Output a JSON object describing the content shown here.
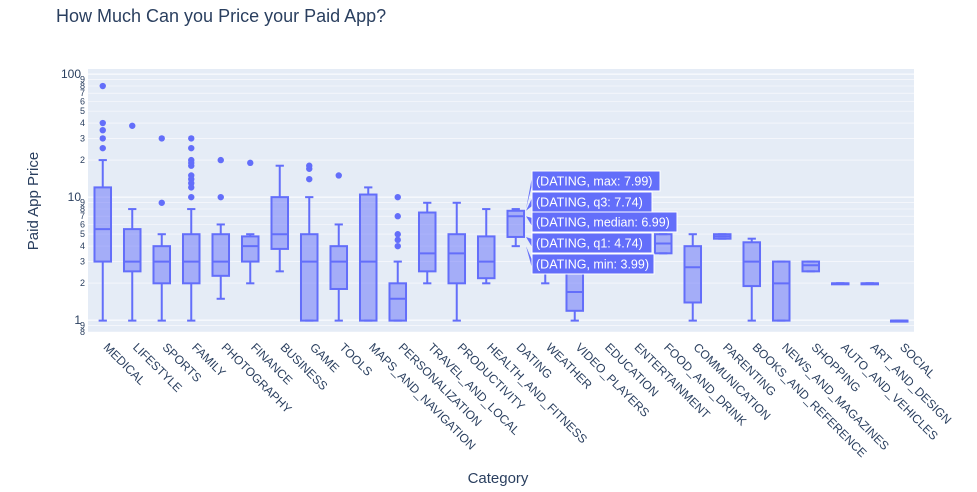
{
  "chart_data": {
    "type": "box",
    "title": "How Much Can you Price your Paid App?",
    "xlabel": "Category",
    "ylabel": "Paid App Price",
    "yscale": "log",
    "ylim": [
      0.8,
      110
    ],
    "y_major_ticks": [
      {
        "v": 1,
        "label": "1"
      },
      {
        "v": 10,
        "label": "10"
      },
      {
        "v": 100,
        "label": "100"
      }
    ],
    "y_minor_ticks": [
      {
        "v": 0.8,
        "label": "8"
      },
      {
        "v": 0.9,
        "label": "9"
      },
      {
        "v": 2,
        "label": "2"
      },
      {
        "v": 3,
        "label": "3"
      },
      {
        "v": 4,
        "label": "4"
      },
      {
        "v": 5,
        "label": "5"
      },
      {
        "v": 6,
        "label": "6"
      },
      {
        "v": 7,
        "label": "7"
      },
      {
        "v": 8,
        "label": "8"
      },
      {
        "v": 9,
        "label": "9"
      },
      {
        "v": 20,
        "label": "2"
      },
      {
        "v": 30,
        "label": "3"
      },
      {
        "v": 40,
        "label": "4"
      },
      {
        "v": 50,
        "label": "5"
      },
      {
        "v": 60,
        "label": "6"
      },
      {
        "v": 70,
        "label": "7"
      },
      {
        "v": 80,
        "label": "8"
      },
      {
        "v": 90,
        "label": "9"
      }
    ],
    "colors": {
      "box_line": "#636efa",
      "box_fill": "rgba(99,110,250,0.5)",
      "plot_bg": "#e5ecf6",
      "grid": "#ffffff",
      "text": "#2a3f5f",
      "hover_bg": "#636efa"
    },
    "grid": true,
    "categories": [
      "MEDICAL",
      "LIFESTYLE",
      "SPORTS",
      "FAMILY",
      "PHOTOGRAPHY",
      "FINANCE",
      "BUSINESS",
      "GAME",
      "TOOLS",
      "MAPS_AND_NAVIGATION",
      "PERSONALIZATION",
      "TRAVEL_AND_LOCAL",
      "PRODUCTIVITY",
      "HEALTH_AND_FITNESS",
      "DATING",
      "WEATHER",
      "VIDEO_PLAYERS",
      "EDUCATION",
      "ENTERTAINMENT",
      "FOOD_AND_DRINK",
      "COMMUNICATION",
      "PARENTING",
      "BOOKS_AND_REFERENCE",
      "NEWS_AND_MAGAZINES",
      "SHOPPING",
      "AUTO_AND_VEHICLES",
      "ART_AND_DESIGN",
      "SOCIAL"
    ],
    "boxes": [
      {
        "min": 0.99,
        "q1": 2.99,
        "median": 5.49,
        "q3": 11.99,
        "max": 19.99,
        "outliers": [
          24.99,
          29.99,
          34.99,
          39.99,
          79.99
        ]
      },
      {
        "min": 0.99,
        "q1": 2.49,
        "median": 2.99,
        "q3": 5.49,
        "max": 7.99,
        "outliers": [
          37.99
        ]
      },
      {
        "min": 0.99,
        "q1": 1.99,
        "median": 2.99,
        "q3": 3.99,
        "max": 4.99,
        "outliers": [
          8.99,
          29.99
        ]
      },
      {
        "min": 0.99,
        "q1": 1.99,
        "median": 2.99,
        "q3": 4.99,
        "max": 7.99,
        "outliers": [
          9.99,
          11.99,
          12.99,
          13.99,
          14.99,
          17.99,
          18.99,
          19.99,
          24.99,
          29.99
        ]
      },
      {
        "min": 1.49,
        "q1": 2.29,
        "median": 2.99,
        "q3": 4.99,
        "max": 5.99,
        "outliers": [
          9.99,
          19.99
        ]
      },
      {
        "min": 1.99,
        "q1": 2.99,
        "median": 3.99,
        "q3": 4.79,
        "max": 4.99,
        "outliers": [
          18.99
        ]
      },
      {
        "min": 2.49,
        "q1": 3.79,
        "median": 4.99,
        "q3": 9.99,
        "max": 17.99,
        "outliers": []
      },
      {
        "min": 0.99,
        "q1": 0.99,
        "median": 2.99,
        "q3": 4.99,
        "max": 9.99,
        "outliers": [
          13.99,
          16.99,
          17.99
        ]
      },
      {
        "min": 0.99,
        "q1": 1.79,
        "median": 2.99,
        "q3": 3.99,
        "max": 5.99,
        "outliers": [
          14.99
        ]
      },
      {
        "min": 0.99,
        "q1": 0.99,
        "median": 2.99,
        "q3": 10.49,
        "max": 11.99,
        "outliers": []
      },
      {
        "min": 0.99,
        "q1": 0.99,
        "median": 1.49,
        "q3": 1.99,
        "max": 2.99,
        "outliers": [
          3.99,
          4.49,
          4.99,
          6.99,
          9.99
        ]
      },
      {
        "min": 1.99,
        "q1": 2.49,
        "median": 3.49,
        "q3": 7.49,
        "max": 8.99,
        "outliers": []
      },
      {
        "min": 0.99,
        "q1": 1.99,
        "median": 3.49,
        "q3": 4.99,
        "max": 8.99,
        "outliers": []
      },
      {
        "min": 1.99,
        "q1": 2.19,
        "median": 2.99,
        "q3": 4.79,
        "max": 7.99,
        "outliers": []
      },
      {
        "min": 3.99,
        "q1": 4.74,
        "median": 6.99,
        "q3": 7.74,
        "max": 7.99,
        "outliers": []
      },
      {
        "min": 1.99,
        "q1": 2.49,
        "median": 2.99,
        "q3": 3.49,
        "max": 3.99,
        "outliers": []
      },
      {
        "min": 0.99,
        "q1": 1.19,
        "median": 1.69,
        "q3": 2.49,
        "max": 2.99,
        "outliers": []
      },
      {
        "min": 3.99,
        "q1": 4.49,
        "median": 4.99,
        "q3": 5.49,
        "max": 5.99,
        "outliers": []
      },
      {
        "min": 3.49,
        "q1": 3.99,
        "median": 4.49,
        "q3": 4.99,
        "max": 5.49,
        "outliers": []
      },
      {
        "min": 3.49,
        "q1": 3.49,
        "median": 4.19,
        "q3": 4.99,
        "max": 4.99,
        "outliers": []
      },
      {
        "min": 0.99,
        "q1": 1.39,
        "median": 2.69,
        "q3": 3.99,
        "max": 4.99,
        "outliers": []
      },
      {
        "min": 4.59,
        "q1": 4.59,
        "median": 4.79,
        "q3": 4.99,
        "max": 4.99,
        "outliers": []
      },
      {
        "min": 0.99,
        "q1": 1.89,
        "median": 2.99,
        "q3": 4.29,
        "max": 4.59,
        "outliers": []
      },
      {
        "min": 0.99,
        "q1": 0.99,
        "median": 1.99,
        "q3": 2.99,
        "max": 2.99,
        "outliers": []
      },
      {
        "min": 2.49,
        "q1": 2.49,
        "median": 2.79,
        "q3": 2.99,
        "max": 2.99,
        "outliers": []
      },
      {
        "min": 1.99,
        "q1": 1.99,
        "median": 1.99,
        "q3": 1.99,
        "max": 1.99,
        "outliers": []
      },
      {
        "min": 1.99,
        "q1": 1.99,
        "median": 1.99,
        "q3": 1.99,
        "max": 1.99,
        "outliers": []
      },
      {
        "min": 0.99,
        "q1": 0.99,
        "median": 0.99,
        "q3": 0.99,
        "max": 0.99,
        "outliers": []
      }
    ],
    "hover": {
      "category": "DATING",
      "labels": [
        "(DATING, max: 7.99)",
        "(DATING, q3: 7.74)",
        "(DATING, median: 6.99)",
        "(DATING, q1: 4.74)",
        "(DATING, min: 3.99)"
      ]
    }
  }
}
